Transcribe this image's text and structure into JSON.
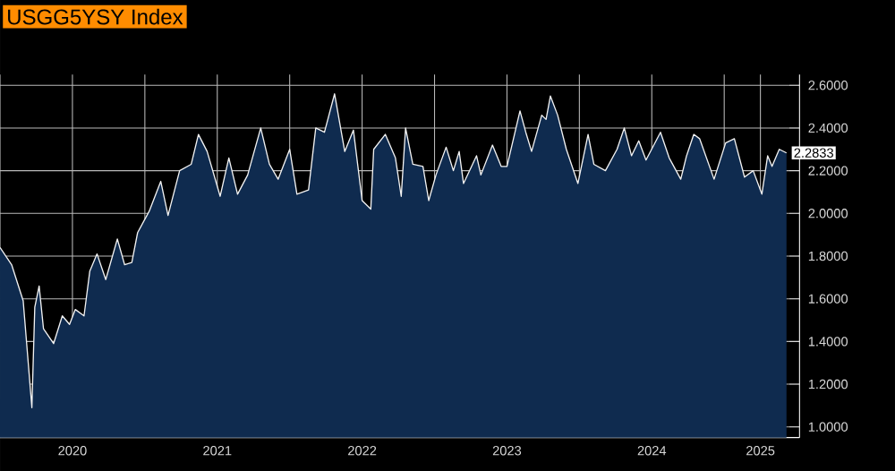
{
  "chart_data": {
    "type": "area",
    "title": "USGG5YSY Index",
    "color": "#0f2b4f",
    "x": [
      2020.0,
      2020.08,
      2020.16,
      2020.22,
      2020.24,
      2020.27,
      2020.3,
      2020.37,
      2020.43,
      2020.48,
      2020.52,
      2020.58,
      2020.62,
      2020.67,
      2020.73,
      2020.81,
      2020.86,
      2020.91,
      2020.95,
      2021.03,
      2021.11,
      2021.16,
      2021.24,
      2021.32,
      2021.37,
      2021.43,
      2021.52,
      2021.58,
      2021.64,
      2021.71,
      2021.8,
      2021.86,
      2021.92,
      2022.0,
      2022.05,
      2022.13,
      2022.18,
      2022.24,
      2022.31,
      2022.38,
      2022.44,
      2022.5,
      2022.56,
      2022.58,
      2022.66,
      2022.73,
      2022.77,
      2022.8,
      2022.85,
      2022.92,
      2022.96,
      2023.01,
      2023.08,
      2023.13,
      2023.17,
      2023.2,
      2023.29,
      2023.32,
      2023.4,
      2023.46,
      2023.5,
      2023.59,
      2023.63,
      2023.67,
      2023.74,
      2023.77,
      2023.8,
      2023.85,
      2023.91,
      2023.99,
      2024.06,
      2024.1,
      2024.18,
      2024.26,
      2024.31,
      2024.36,
      2024.41,
      2024.46,
      2024.56,
      2024.62,
      2024.7,
      2024.74,
      2024.79,
      2024.83,
      2024.93,
      2025.01,
      2025.07,
      2025.14,
      2025.2,
      2025.26,
      2025.3,
      2025.33,
      2025.38,
      2025.43
    ],
    "series": [
      {
        "color": "#f2f2f2",
        "values": [
          1.84,
          1.76,
          1.59,
          1.09,
          1.56,
          1.66,
          1.46,
          1.39,
          1.52,
          1.48,
          1.55,
          1.52,
          1.73,
          1.81,
          1.69,
          1.88,
          1.76,
          1.77,
          1.91,
          2.01,
          2.15,
          1.99,
          2.2,
          2.23,
          2.37,
          2.29,
          2.08,
          2.26,
          2.09,
          2.18,
          2.4,
          2.23,
          2.16,
          2.3,
          2.09,
          2.11,
          2.4,
          2.38,
          2.56,
          2.29,
          2.39,
          2.06,
          2.02,
          2.3,
          2.37,
          2.26,
          2.08,
          2.4,
          2.23,
          2.22,
          2.06,
          2.18,
          2.31,
          2.2,
          2.29,
          2.14,
          2.27,
          2.18,
          2.32,
          2.22,
          2.22,
          2.48,
          2.38,
          2.29,
          2.46,
          2.44,
          2.55,
          2.46,
          2.3,
          2.14,
          2.37,
          2.23,
          2.2,
          2.3,
          2.4,
          2.27,
          2.34,
          2.25,
          2.38,
          2.26,
          2.16,
          2.27,
          2.37,
          2.35,
          2.16,
          2.33,
          2.35,
          2.17,
          2.2,
          2.09,
          2.27,
          2.22,
          2.3,
          2.2833
        ]
      }
    ],
    "xlim": [
      2020,
      2025.52
    ],
    "ylim": [
      0.95,
      2.65
    ],
    "xticks": [
      {
        "value": 2020,
        "label": null
      },
      {
        "value": 2020.5,
        "label": "2020"
      },
      {
        "value": 2021,
        "label": null
      },
      {
        "value": 2021.5,
        "label": "2021"
      },
      {
        "value": 2022,
        "label": null
      },
      {
        "value": 2022.5,
        "label": "2022"
      },
      {
        "value": 2023,
        "label": null
      },
      {
        "value": 2023.5,
        "label": "2023"
      },
      {
        "value": 2024,
        "label": null
      },
      {
        "value": 2024.5,
        "label": "2024"
      },
      {
        "value": 2025,
        "label": null
      },
      {
        "value": 2025.25,
        "label": "2025"
      }
    ],
    "yticks": [
      {
        "value": 1.0,
        "label": "1.0000"
      },
      {
        "value": 1.2,
        "label": "1.2000"
      },
      {
        "value": 1.4,
        "label": "1.4000"
      },
      {
        "value": 1.6,
        "label": "1.6000"
      },
      {
        "value": 1.8,
        "label": "1.8000"
      },
      {
        "value": 2.0,
        "label": "2.0000"
      },
      {
        "value": 2.2,
        "label": "2.2000"
      },
      {
        "value": 2.4,
        "label": "2.4000"
      },
      {
        "value": 2.6,
        "label": "2.6000"
      }
    ],
    "grid": true,
    "annotations": [
      {
        "text": "2.2833",
        "x": 2025.43,
        "y": 2.2833
      }
    ]
  }
}
